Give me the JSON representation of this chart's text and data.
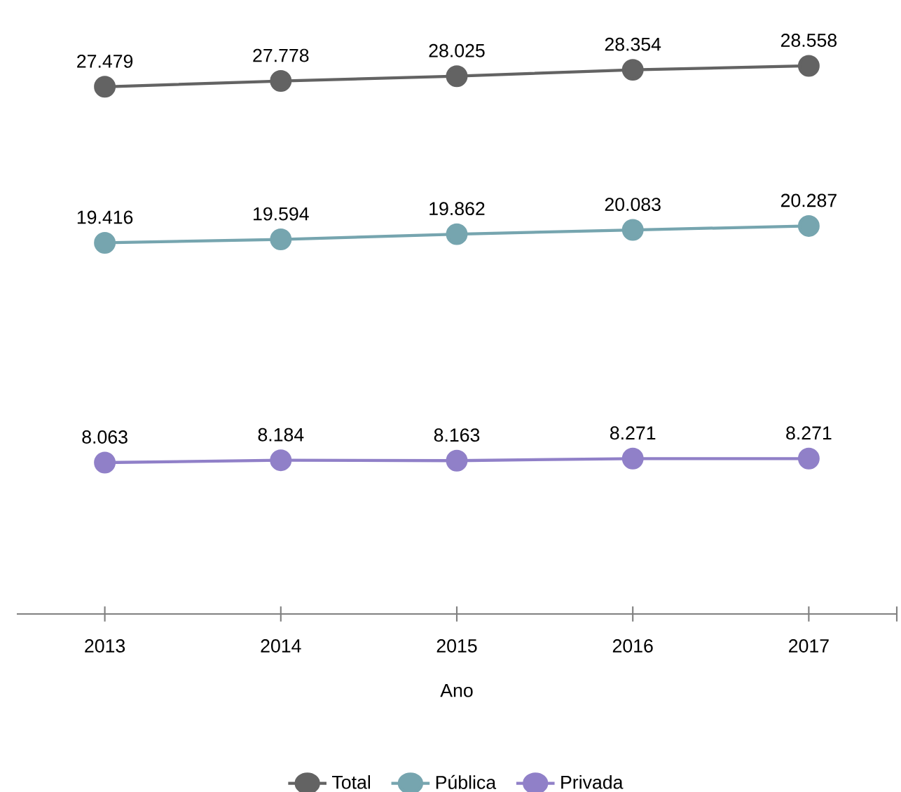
{
  "chart_data": {
    "type": "line",
    "xlabel": "Ano",
    "categories": [
      "2013",
      "2014",
      "2015",
      "2016",
      "2017"
    ],
    "series": [
      {
        "name": "Total",
        "color": "#636363",
        "values": [
          27.479,
          27.778,
          28.025,
          28.354,
          28.558
        ]
      },
      {
        "name": "Pública",
        "color": "#76a5af",
        "values": [
          19.416,
          19.594,
          19.862,
          20.083,
          20.287
        ]
      },
      {
        "name": "Privada",
        "color": "#9080c8",
        "values": [
          8.063,
          8.184,
          8.163,
          8.271,
          8.271
        ]
      }
    ],
    "data_labels": true,
    "marker": "circle",
    "line_style": "solid",
    "legend": "bottom",
    "grid": false,
    "tick_labels": "x"
  }
}
